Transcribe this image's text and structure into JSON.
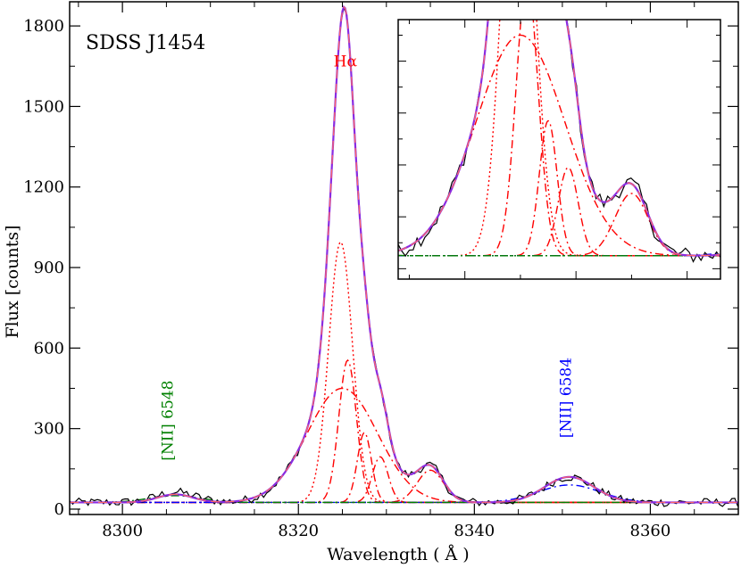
{
  "chart_data": {
    "type": "line",
    "title": "SDSS J1454",
    "xlabel": "Wavelength  ( Å )",
    "ylabel": "Flux [counts]",
    "xlim": [
      8294,
      8370
    ],
    "ylim": [
      -20,
      1890
    ],
    "xticks": [
      8300,
      8320,
      8340,
      8360
    ],
    "xtick_labels": [
      "8300",
      "8320",
      "8340",
      "8360"
    ],
    "yticks": [
      0,
      300,
      600,
      900,
      1200,
      1500,
      1800
    ],
    "ytick_labels": [
      "0",
      "300",
      "600",
      "900",
      "1200",
      "1500",
      "1800"
    ],
    "grid": false,
    "annotations": [
      {
        "text": "Hα",
        "x": 8324.0,
        "y": 1650,
        "color": "#ff0000",
        "rotation": 0
      },
      {
        "text": "[NII] 6548",
        "x": 8305.7,
        "y": 180,
        "color": "#008000",
        "rotation": -90
      },
      {
        "text": "[NII] 6584",
        "x": 8351.0,
        "y": 265,
        "color": "#0000ff",
        "rotation": -90
      }
    ],
    "baseline": 25,
    "components": [
      {
        "style": "red-dotted",
        "profile": "gauss",
        "center": 8324.8,
        "amp": 970,
        "sigma": 1.35
      },
      {
        "style": "red-dashdot",
        "profile": "gauss",
        "center": 8325.6,
        "amp": 530,
        "sigma": 1.0
      },
      {
        "style": "red-dashdot",
        "profile": "gauss",
        "center": 8325.0,
        "amp": 425,
        "sigma": 4.0
      },
      {
        "style": "red-dashdot",
        "profile": "gauss",
        "center": 8327.5,
        "amp": 260,
        "sigma": 0.8
      },
      {
        "style": "red-dashdot",
        "profile": "gauss",
        "center": 8329.3,
        "amp": 170,
        "sigma": 0.9
      },
      {
        "style": "red-dashdot",
        "profile": "gauss",
        "center": 8335.0,
        "amp": 120,
        "sigma": 1.5
      },
      {
        "style": "blue-dotted",
        "profile": "gauss",
        "center": 8350.8,
        "amp": 95,
        "sigma": 2.8
      },
      {
        "style": "blue-dashdot",
        "profile": "gauss",
        "center": 8350.8,
        "amp": 65,
        "sigma": 3.5
      },
      {
        "style": "green-dotted",
        "profile": "gauss",
        "center": 8306.0,
        "amp": 30,
        "sigma": 2.0
      },
      {
        "style": "green-dashdot",
        "profile": "gauss",
        "center": 8306.0,
        "amp": 25,
        "sigma": 3.0
      }
    ],
    "observed_spectrum": {
      "x_start": 8294,
      "x_end": 8370,
      "step": 0.35,
      "noise_amplitude": 16,
      "extra_features": [
        {
          "center": 8306.0,
          "amp": 28,
          "sigma": 2.5
        },
        {
          "center": 8309.5,
          "amp": 10,
          "sigma": 1.5
        }
      ]
    },
    "total_fit": {
      "color": "#8a2be2",
      "dash": "#ff6666"
    },
    "inset": {
      "xlim": [
        8314,
        8343
      ],
      "ylim": [
        -20,
        480
      ]
    },
    "colors": {
      "data": "#000000",
      "fit": "#8a2be2",
      "halpha": "#ff0000",
      "nii_6548": "#008000",
      "nii_6584": "#0000ff"
    }
  }
}
